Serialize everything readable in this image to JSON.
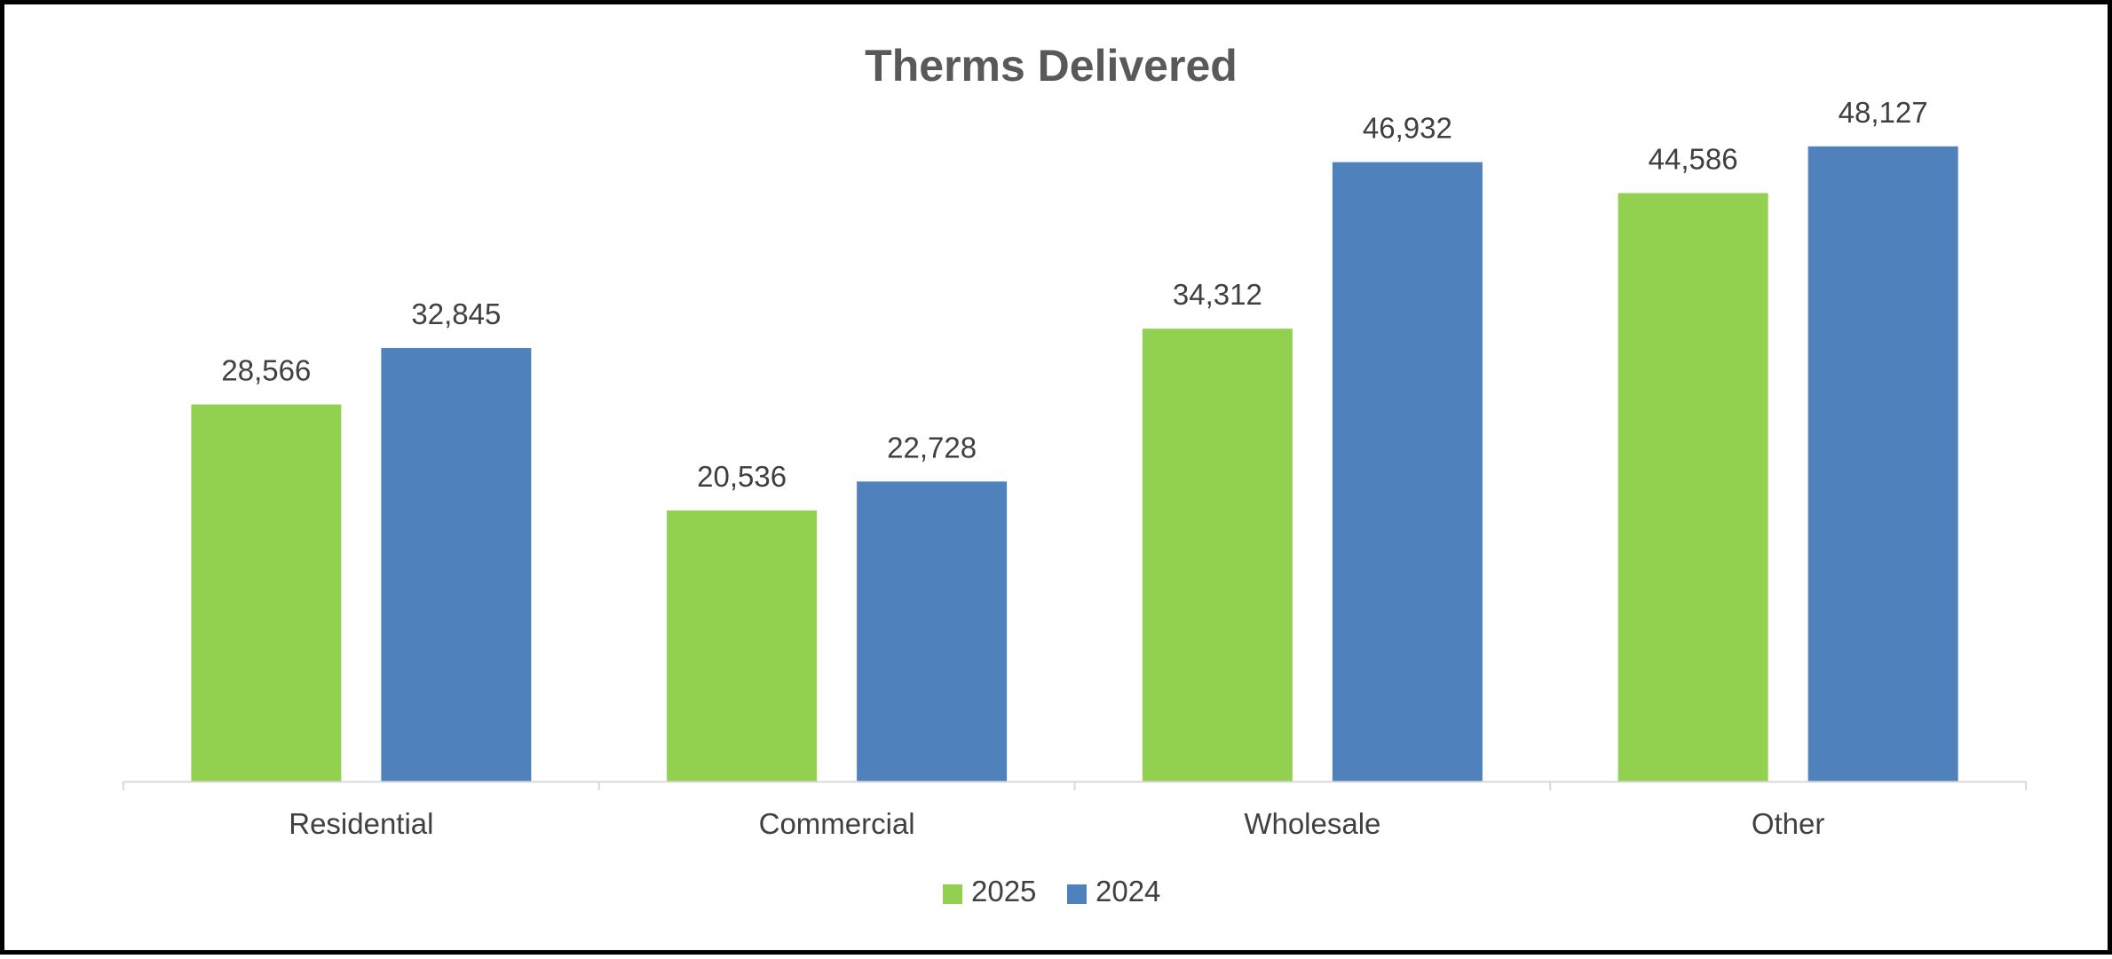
{
  "chart_data": {
    "type": "bar",
    "title": "Therms Delivered",
    "categories": [
      "Residential",
      "Commercial",
      "Wholesale",
      "Other"
    ],
    "series": [
      {
        "name": "2025",
        "color": "#92d050",
        "values": [
          28566,
          20536,
          34312,
          44586
        ],
        "labels": [
          "28,566",
          "20,536",
          "34,312",
          "44,586"
        ]
      },
      {
        "name": "2024",
        "color": "#4f81bd",
        "values": [
          32845,
          22728,
          46932,
          48127
        ],
        "labels": [
          "32,845",
          "22,728",
          "46,932",
          "48,127"
        ]
      }
    ],
    "ylim": [
      0,
      50000
    ],
    "grid": false,
    "legend_position": "bottom"
  }
}
